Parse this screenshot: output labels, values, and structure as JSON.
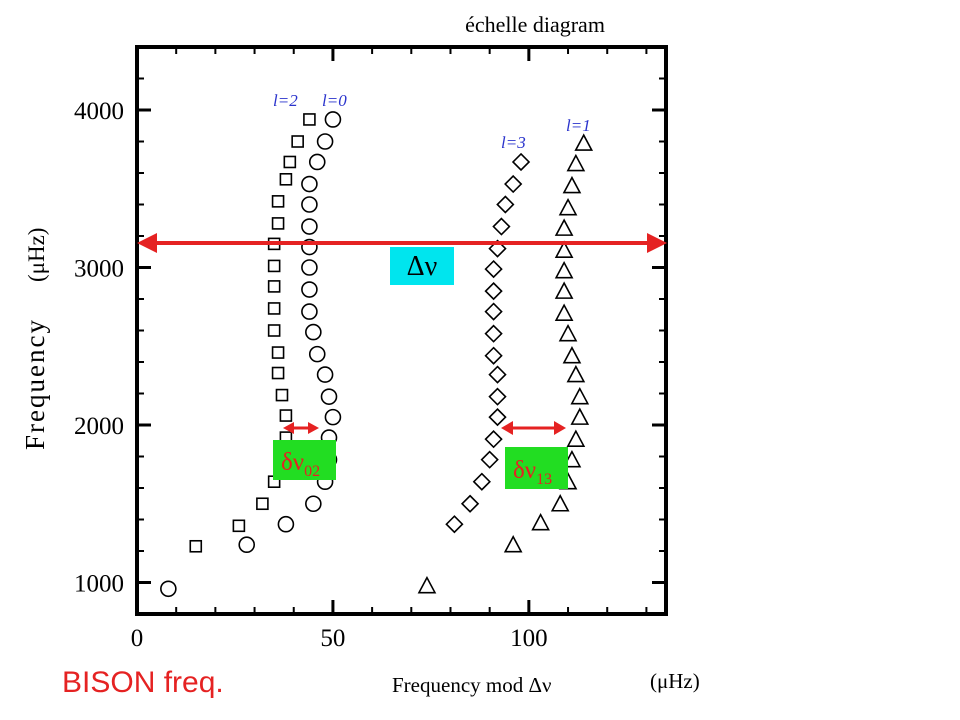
{
  "chart_data": {
    "type": "scatter",
    "title": "échelle diagram",
    "xlabel": "Frequency mod Δν",
    "xlabel_unit": "(μHz)",
    "ylabel": "Frequency",
    "ylabel_unit": "(μHz)",
    "xlim": [
      0,
      135
    ],
    "ylim": [
      800,
      4400
    ],
    "x_ticks": [
      0,
      50,
      100
    ],
    "y_ticks": [
      1000,
      2000,
      3000,
      4000
    ],
    "grid": false,
    "series": [
      {
        "name": "l=0",
        "marker": "circle",
        "points": [
          [
            8,
            960
          ],
          [
            28,
            1240
          ],
          [
            38,
            1370
          ],
          [
            45,
            1500
          ],
          [
            48,
            1640
          ],
          [
            49,
            1780
          ],
          [
            49,
            1920
          ],
          [
            50,
            2050
          ],
          [
            49,
            2180
          ],
          [
            48,
            2320
          ],
          [
            46,
            2450
          ],
          [
            45,
            2590
          ],
          [
            44,
            2720
          ],
          [
            44,
            2860
          ],
          [
            44,
            3000
          ],
          [
            44,
            3130
          ],
          [
            44,
            3260
          ],
          [
            44,
            3400
          ],
          [
            44,
            3530
          ],
          [
            46,
            3670
          ],
          [
            48,
            3800
          ],
          [
            50,
            3940
          ]
        ]
      },
      {
        "name": "l=1",
        "marker": "triangle",
        "points": [
          [
            74,
            980
          ],
          [
            96,
            1240
          ],
          [
            103,
            1380
          ],
          [
            108,
            1500
          ],
          [
            110,
            1640
          ],
          [
            111,
            1780
          ],
          [
            112,
            1910
          ],
          [
            113,
            2050
          ],
          [
            113,
            2180
          ],
          [
            112,
            2320
          ],
          [
            111,
            2440
          ],
          [
            110,
            2580
          ],
          [
            109,
            2710
          ],
          [
            109,
            2850
          ],
          [
            109,
            2980
          ],
          [
            109,
            3110
          ],
          [
            109,
            3250
          ],
          [
            110,
            3380
          ],
          [
            111,
            3520
          ],
          [
            112,
            3660
          ],
          [
            114,
            3790
          ]
        ]
      },
      {
        "name": "l=2",
        "marker": "square",
        "points": [
          [
            15,
            1230
          ],
          [
            26,
            1360
          ],
          [
            32,
            1500
          ],
          [
            35,
            1640
          ],
          [
            37,
            1780
          ],
          [
            38,
            1920
          ],
          [
            38,
            2060
          ],
          [
            37,
            2190
          ],
          [
            36,
            2330
          ],
          [
            36,
            2460
          ],
          [
            35,
            2600
          ],
          [
            35,
            2740
          ],
          [
            35,
            2880
          ],
          [
            35,
            3010
          ],
          [
            35,
            3150
          ],
          [
            36,
            3280
          ],
          [
            36,
            3420
          ],
          [
            38,
            3560
          ],
          [
            39,
            3670
          ],
          [
            41,
            3800
          ],
          [
            44,
            3940
          ]
        ]
      },
      {
        "name": "l=3",
        "marker": "diamond",
        "points": [
          [
            81,
            1370
          ],
          [
            85,
            1500
          ],
          [
            88,
            1640
          ],
          [
            90,
            1780
          ],
          [
            91,
            1910
          ],
          [
            92,
            2050
          ],
          [
            92,
            2180
          ],
          [
            92,
            2320
          ],
          [
            91,
            2440
          ],
          [
            91,
            2580
          ],
          [
            91,
            2720
          ],
          [
            91,
            2850
          ],
          [
            91,
            2990
          ],
          [
            92,
            3120
          ],
          [
            93,
            3260
          ],
          [
            94,
            3400
          ],
          [
            96,
            3530
          ],
          [
            98,
            3670
          ]
        ]
      }
    ],
    "annotations": [
      {
        "label": "Δν",
        "type": "double-arrow",
        "x": [
          0,
          135
        ],
        "y": 3130,
        "box_color": "#00e5ee"
      },
      {
        "label": "δν",
        "subscript": "02",
        "type": "double-arrow",
        "x": [
          39,
          48
        ],
        "y": 1920,
        "box_color": "#22dd22"
      },
      {
        "label": "δν",
        "subscript": "13",
        "type": "double-arrow",
        "x": [
          94,
          110
        ],
        "y": 1920,
        "box_color": "#22dd22"
      }
    ],
    "colors": {
      "arrow": "#e52222",
      "label": "#2a33cc",
      "markers": "#000000"
    }
  },
  "footer": {
    "text": "BISON freq.",
    "color": "#e52222"
  }
}
